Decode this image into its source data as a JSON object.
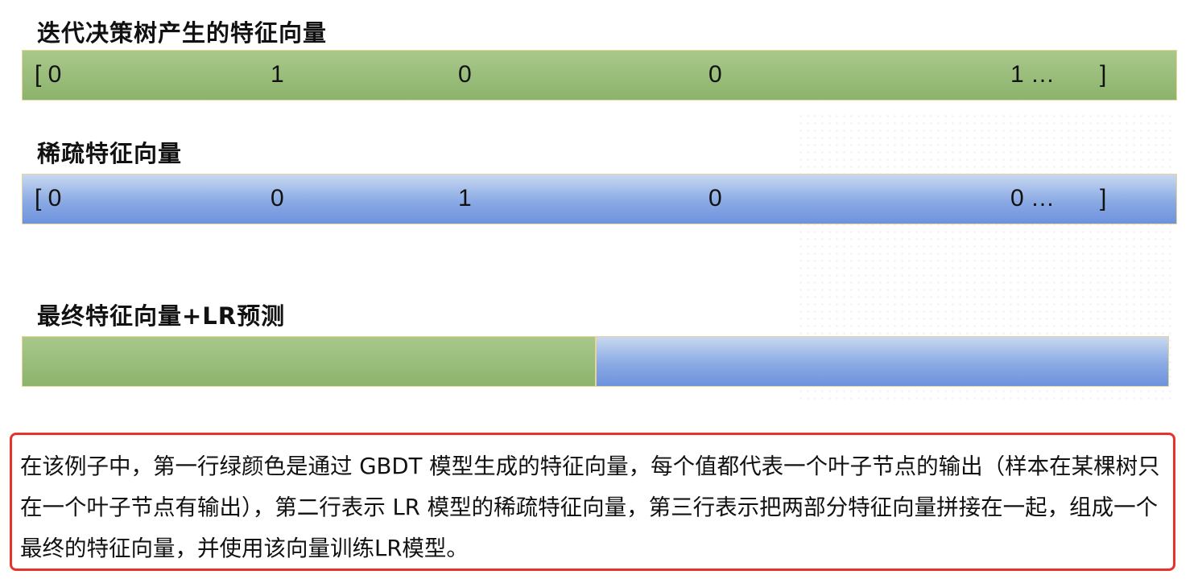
{
  "section1": {
    "title": "迭代决策树产生的特征向量",
    "vector": [
      "[ 0",
      "1",
      "0",
      "0",
      "1 …",
      "]"
    ],
    "color": "#8cb36c"
  },
  "section2": {
    "title": "稀疏特征向量",
    "vector": [
      "[ 0",
      "0",
      "1",
      "0",
      "0 …",
      "]"
    ],
    "color": "#7b9ee0"
  },
  "section3": {
    "title": "最终特征向量+LR预测"
  },
  "note": {
    "text": "在该例子中，第一行绿颜色是通过 GBDT 模型生成的特征向量，每个值都代表一个叶子节点的输出（样本在某棵树只在一个叶子节点有输出），第二行表示 LR 模型的稀疏特征向量，第三行表示把两部分特征向量拼接在一起，组成一个最终的特征向量，并使用该向量训练LR模型。",
    "border_color": "#e8332a"
  }
}
